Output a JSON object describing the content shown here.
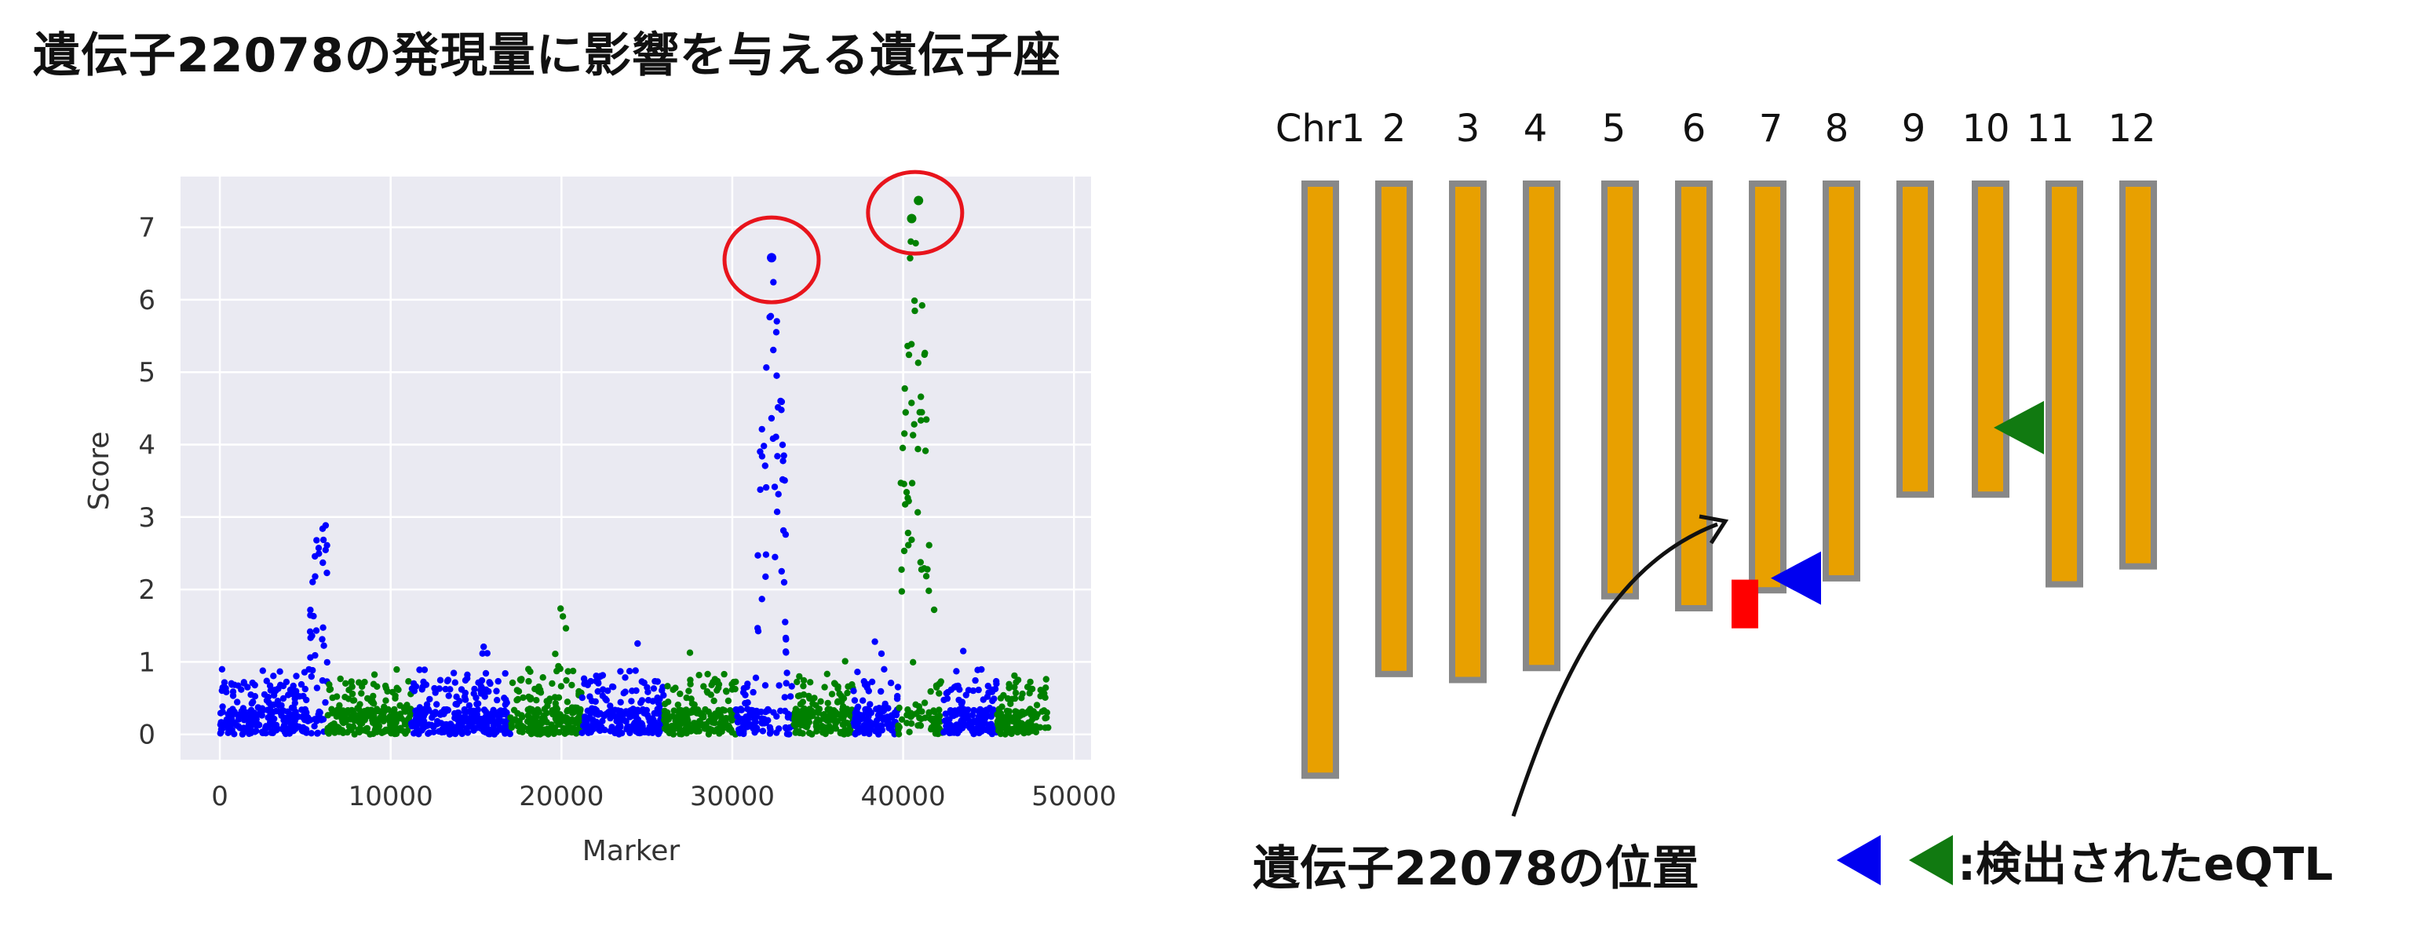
{
  "title": "遺伝子22078の発現量に影響を与える遺伝子座",
  "chart_data": [
    {
      "type": "scatter",
      "title": "",
      "xlabel": "Marker",
      "ylabel": "Score",
      "xlim": [
        -2300,
        51000
      ],
      "ylim": [
        -0.35,
        7.7
      ],
      "xticks": [
        0,
        10000,
        20000,
        30000,
        40000,
        50000
      ],
      "xtick_labels": [
        "0",
        "10000",
        "20000",
        "30000",
        "40000",
        "50000"
      ],
      "yticks": [
        0,
        1,
        2,
        3,
        4,
        5,
        6,
        7
      ],
      "ytick_labels": [
        "0",
        "1",
        "2",
        "3",
        "4",
        "5",
        "6",
        "7"
      ],
      "grid": true,
      "background": "#eaeaf2",
      "chromosome_segments": [
        {
          "chr": 1,
          "start": 0,
          "end": 6300,
          "color": "#0000ff",
          "peak": 3.05,
          "peak_x": 6000
        },
        {
          "chr": 2,
          "start": 6300,
          "end": 11200,
          "color": "#008000",
          "peak": 0.9,
          "peak_x": 9000
        },
        {
          "chr": 3,
          "start": 11200,
          "end": 17000,
          "color": "#0000ff",
          "peak": 1.5,
          "peak_x": 15500
        },
        {
          "chr": 4,
          "start": 17000,
          "end": 21200,
          "color": "#008000",
          "peak": 1.8,
          "peak_x": 20000
        },
        {
          "chr": 5,
          "start": 21200,
          "end": 26000,
          "color": "#0000ff",
          "peak": 1.55,
          "peak_x": 24700
        },
        {
          "chr": 6,
          "start": 26000,
          "end": 30200,
          "color": "#008000",
          "peak": 1.6,
          "peak_x": 27500
        },
        {
          "chr": 7,
          "start": 30200,
          "end": 33600,
          "color": "#0000ff",
          "peak": 6.58,
          "peak_x": 32300
        },
        {
          "chr": 8,
          "start": 33600,
          "end": 37100,
          "color": "#008000",
          "peak": 1.6,
          "peak_x": 36500
        },
        {
          "chr": 9,
          "start": 37100,
          "end": 39700,
          "color": "#0000ff",
          "peak": 1.5,
          "peak_x": 38500
        },
        {
          "chr": 10,
          "start": 39700,
          "end": 42300,
          "color": "#008000",
          "peak": 7.37,
          "peak_x": 40700
        },
        {
          "chr": 11,
          "start": 42300,
          "end": 45500,
          "color": "#0000ff",
          "peak": 1.6,
          "peak_x": 43600
        },
        {
          "chr": 12,
          "start": 45500,
          "end": 48500,
          "color": "#008000",
          "peak": 0.9,
          "peak_x": 47500
        }
      ],
      "highlighted_points": [
        {
          "x": 32300,
          "y": 6.58,
          "color": "#0000ff"
        },
        {
          "x": 40900,
          "y": 7.37,
          "color": "#008000"
        },
        {
          "x": 40500,
          "y": 7.12,
          "color": "#008000"
        }
      ],
      "circle_color": "#e8141c"
    },
    {
      "type": "diagram",
      "chromosome_labels": [
        "Chr1",
        "2",
        "3",
        "4",
        "5",
        "6",
        "7",
        "8",
        "9",
        "10",
        "11",
        "12"
      ],
      "chromosome_lengths": [
        0.99,
        0.82,
        0.83,
        0.81,
        0.69,
        0.71,
        0.68,
        0.66,
        0.52,
        0.52,
        0.67,
        0.64
      ],
      "bar_color": "#e8a000",
      "bar_border": "#888888",
      "gene_position": {
        "chr": "7",
        "fraction": 0.77,
        "color": "#ff0000"
      },
      "eqtl_markers": [
        {
          "chr": "7",
          "fraction": 0.68,
          "color": "#0000f0"
        },
        {
          "chr": "10",
          "fraction": 0.4,
          "color": "#117a11"
        }
      ],
      "gene_label": "遺伝子22078の位置",
      "legend_text": ":検出されたeQTL"
    }
  ]
}
